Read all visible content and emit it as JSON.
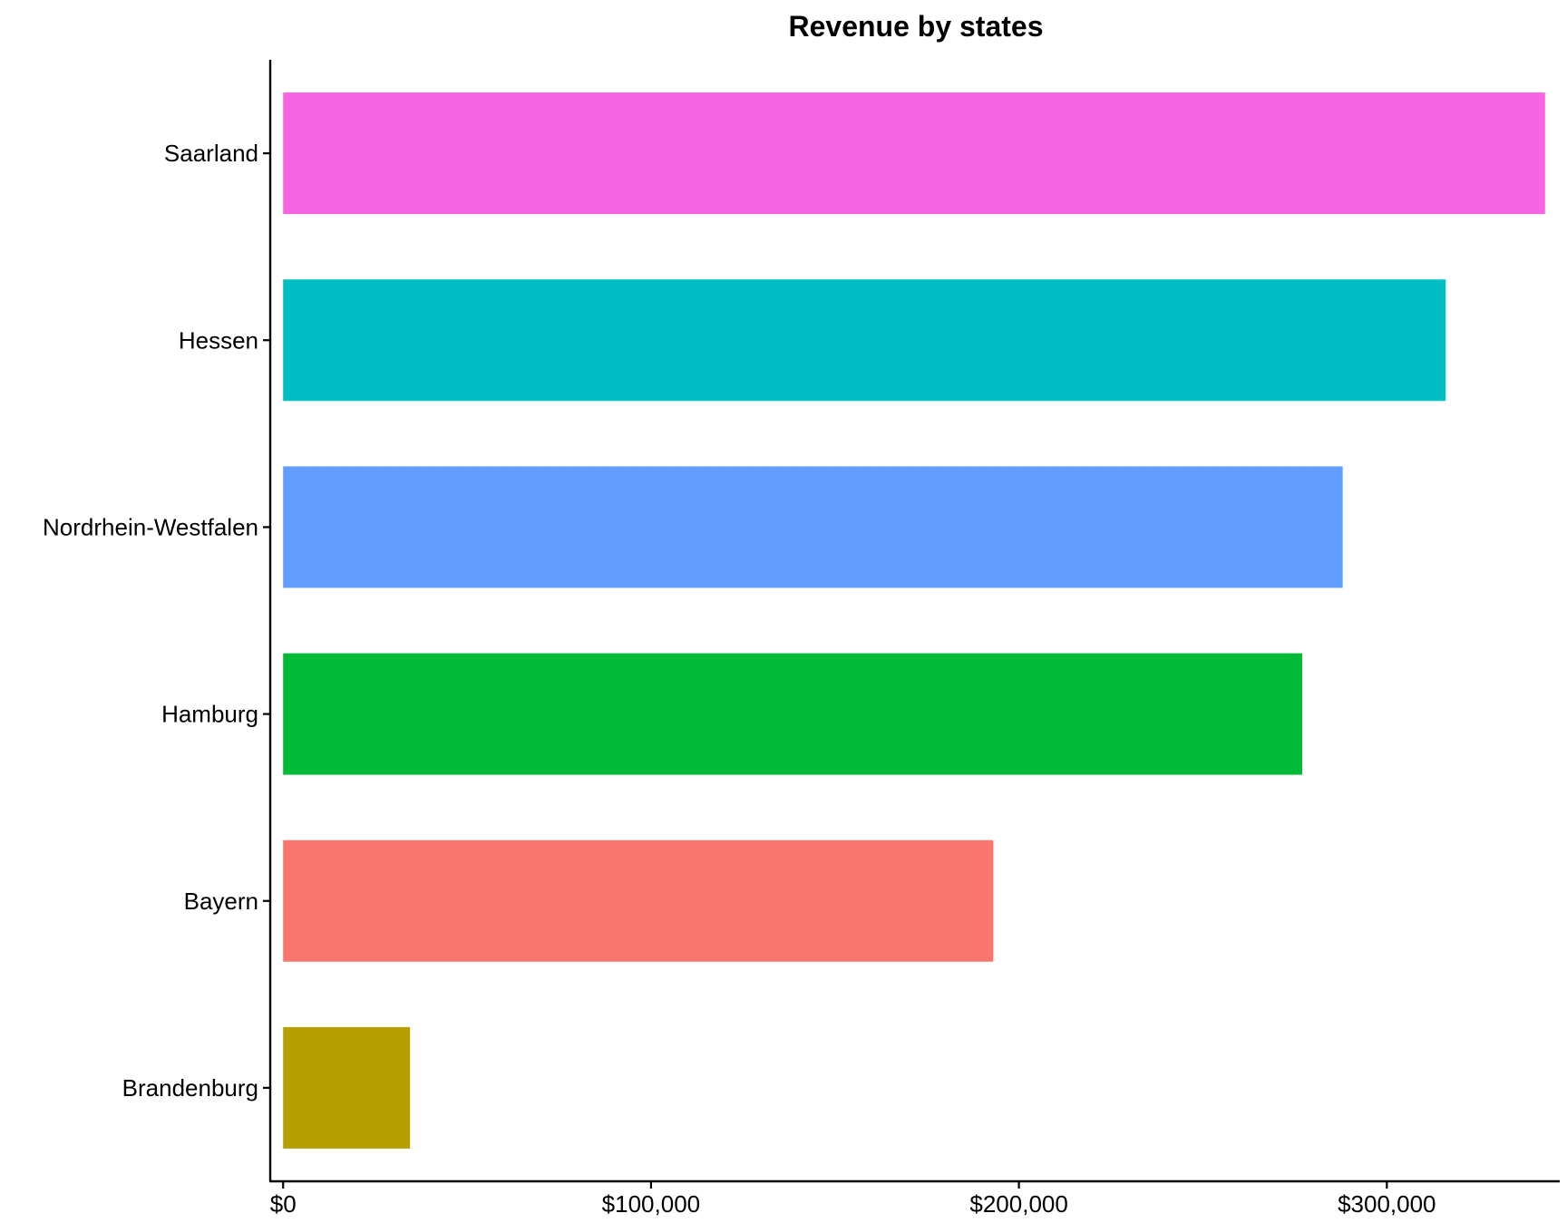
{
  "chart_data": {
    "type": "bar",
    "orientation": "horizontal",
    "title": "Revenue by states",
    "xlabel": "",
    "ylabel": "",
    "categories": [
      "Saarland",
      "Hessen",
      "Nordrhein-Westfalen",
      "Hamburg",
      "Bayern",
      "Brandenburg"
    ],
    "values": [
      343000,
      316000,
      288000,
      277000,
      193000,
      34500
    ],
    "colors": [
      "#F564E3",
      "#00BFC4",
      "#619CFF",
      "#00BA38",
      "#F8766D",
      "#B79F00"
    ],
    "xlim": [
      -3500,
      347000
    ],
    "x_ticks": [
      0,
      100000,
      200000,
      300000
    ],
    "x_tick_labels": [
      "$0",
      "$100,000",
      "$200,000",
      "$300,000"
    ],
    "grid": false,
    "legend": "none"
  }
}
